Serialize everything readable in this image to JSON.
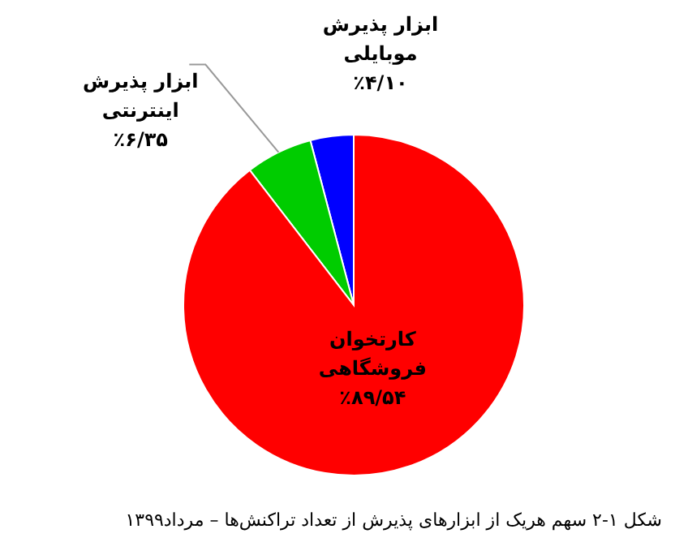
{
  "chart_data": {
    "type": "pie",
    "categories": [
      "ابزار پذیرش موبایلی",
      "ابزار پذیرش اینترنتی",
      "کارتخوان فروشگاهی"
    ],
    "values": [
      4.1,
      6.35,
      89.54
    ],
    "colors": [
      "#0000ff",
      "#00cc00",
      "#ff0000"
    ],
    "value_labels": [
      "٪۴/۱۰",
      "٪۶/۳۵",
      "٪۸۹/۵۴"
    ],
    "annotations": [
      "شکل ۱-۲ سهم هریک از ابزارهای پذیرش از تعداد تراکنش‌ها – مرداد۱۳۹۹"
    ],
    "legend": false
  }
}
